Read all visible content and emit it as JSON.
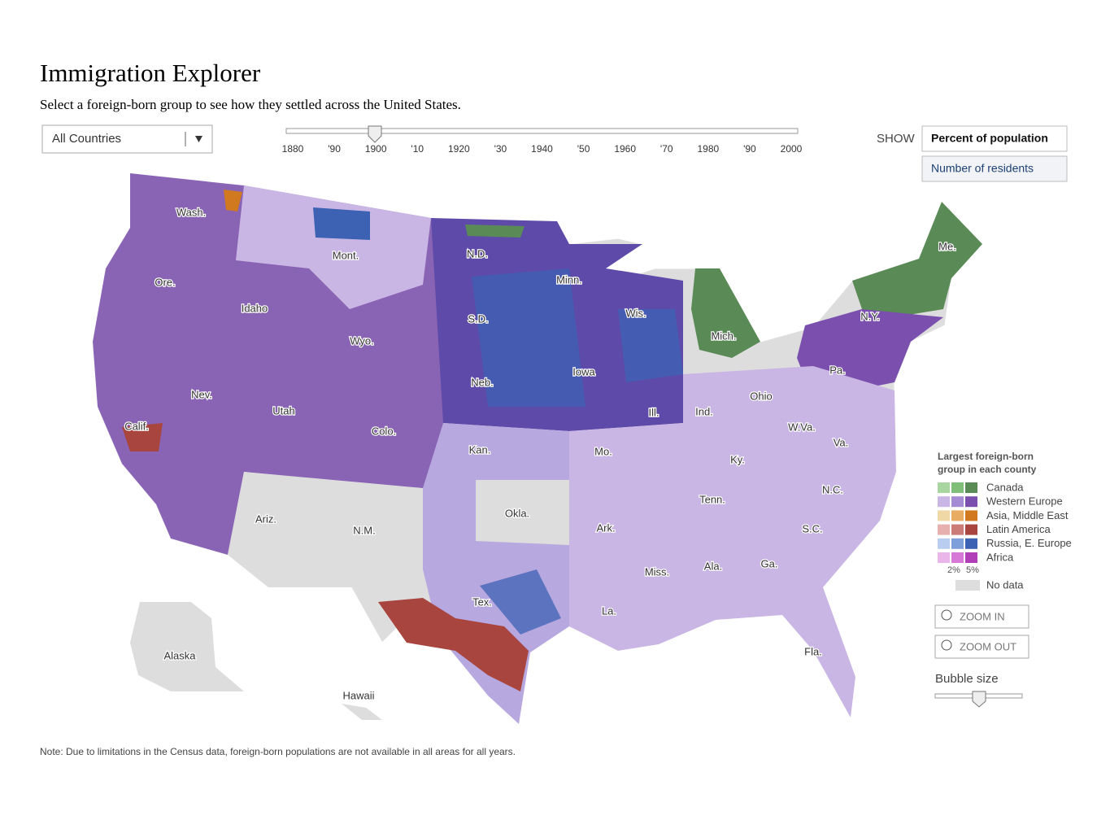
{
  "header": {
    "title": "Immigration Explorer",
    "subtitle": "Select a foreign-born group to see how they settled across the United States."
  },
  "dropdown": {
    "selected": "All Countries"
  },
  "timeline": {
    "ticks": [
      "1880",
      "'90",
      "1900",
      "'10",
      "1920",
      "'30",
      "1940",
      "'50",
      "1960",
      "'70",
      "1980",
      "'90",
      "2000"
    ]
  },
  "show": {
    "label": "SHOW",
    "options": [
      "Percent of population",
      "Number of residents"
    ]
  },
  "map": {
    "labels": [
      "Wash.",
      "Mont.",
      "Ore.",
      "Idaho",
      "N.D.",
      "Minn.",
      "S.D.",
      "Wis.",
      "Mich.",
      "Me.",
      "N.Y.",
      "Wyo.",
      "Neb.",
      "Iowa",
      "Pa.",
      "Nev.",
      "Utah",
      "Colo.",
      "Ill.",
      "Ind.",
      "Ohio",
      "Calif.",
      "Kan.",
      "Mo.",
      "W.Va.",
      "Va.",
      "Ky.",
      "N.C.",
      "Tenn.",
      "Ariz.",
      "N.M.",
      "Okla.",
      "Ark.",
      "S.C.",
      "Ga.",
      "Ala.",
      "Miss.",
      "Tex.",
      "La.",
      "Fla.",
      "Alaska",
      "Hawaii"
    ]
  },
  "legend": {
    "title": [
      "Largest foreign-born",
      "group in each county"
    ],
    "groups": [
      {
        "name": "Canada",
        "colors": [
          "#a9d6a0",
          "#7fbf7a",
          "#5a8a55"
        ]
      },
      {
        "name": "Western Europe",
        "colors": [
          "#c9b6e4",
          "#a58bd3",
          "#7a4fae"
        ]
      },
      {
        "name": "Asia, Middle East",
        "colors": [
          "#efd7a6",
          "#e8ad63",
          "#d0791e"
        ]
      },
      {
        "name": "Latin America",
        "colors": [
          "#e6b0ae",
          "#cc7c78",
          "#a8453f"
        ]
      },
      {
        "name": "Russia, E. Europe",
        "colors": [
          "#b8cdef",
          "#7f9fdb",
          "#3d62b4"
        ]
      },
      {
        "name": "Africa",
        "colors": [
          "#eab6ea",
          "#d77ad7",
          "#b03fb8"
        ]
      }
    ],
    "scale": [
      "2%",
      "5%"
    ],
    "no_data": "No data"
  },
  "controls": {
    "zoom_in": "ZOOM IN",
    "zoom_out": "ZOOM OUT",
    "bubble_size": "Bubble size"
  },
  "note": "Note: Due to limitations in the Census data, foreign-born  populations are not available in all areas for all years."
}
